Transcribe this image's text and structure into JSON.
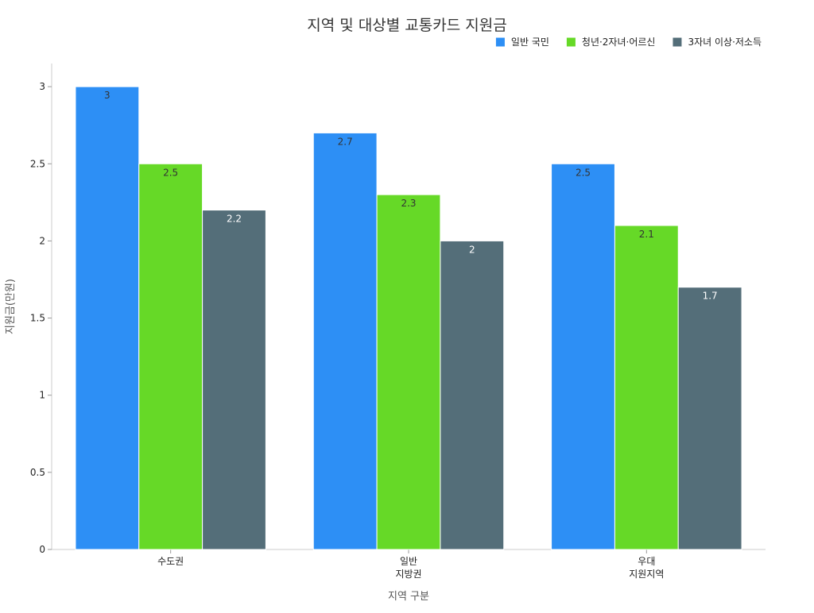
{
  "chart_data": {
    "type": "bar",
    "title": "지역 및 대상별 교통카드 지원금",
    "xlabel": "지역 구분",
    "ylabel": "지원금(만원)",
    "categories": [
      [
        "수도권"
      ],
      [
        "일반",
        "지방권"
      ],
      [
        "우대",
        "지원지역"
      ]
    ],
    "series": [
      {
        "name": "일반 국민",
        "color": "#2d8ff5",
        "label_color": "#333333",
        "values": [
          3,
          2.7,
          2.5
        ]
      },
      {
        "name": "청년·2자녀·어르신",
        "color": "#66d927",
        "label_color": "#333333",
        "values": [
          2.5,
          2.3,
          2.1
        ]
      },
      {
        "name": "3자녀 이상·저소득",
        "color": "#546e79",
        "label_color": "#ffffff",
        "values": [
          2.2,
          2,
          1.7
        ]
      }
    ],
    "ylim": [
      0,
      3.15
    ],
    "yticks": [
      0,
      0.5,
      1,
      1.5,
      2,
      2.5,
      3
    ],
    "ytick_labels": [
      "0",
      "0.5",
      "1",
      "1.5",
      "2",
      "2.5",
      "3"
    ],
    "legend_position": "top-right",
    "grid": false
  }
}
